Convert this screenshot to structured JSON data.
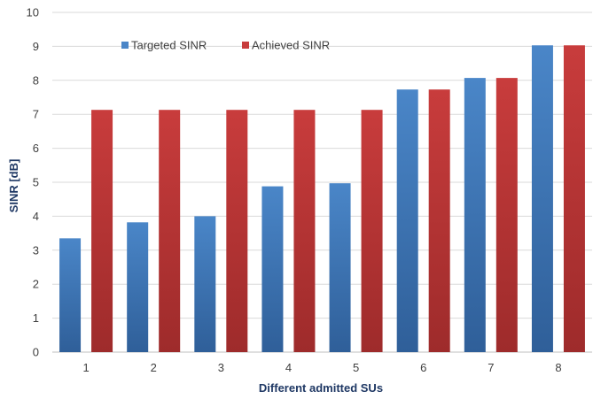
{
  "chart_data": {
    "type": "bar",
    "title": "",
    "xlabel": "Different admitted SUs",
    "ylabel": "SINR [dB]",
    "categories": [
      "1",
      "2",
      "3",
      "4",
      "5",
      "6",
      "7",
      "8"
    ],
    "ylim": [
      0,
      10
    ],
    "yticks": [
      0,
      1,
      2,
      3,
      4,
      5,
      6,
      7,
      8,
      9,
      10
    ],
    "grid": true,
    "legend_position": "top-left",
    "series": [
      {
        "name": "Targeted SINR",
        "color": "#4a86c8",
        "values": [
          3.35,
          3.82,
          4.0,
          4.88,
          4.97,
          7.73,
          8.07,
          9.03
        ]
      },
      {
        "name": "Achieved SINR",
        "color": "#c83c3c",
        "values": [
          7.13,
          7.13,
          7.13,
          7.13,
          7.13,
          7.73,
          8.07,
          9.03
        ]
      }
    ]
  }
}
